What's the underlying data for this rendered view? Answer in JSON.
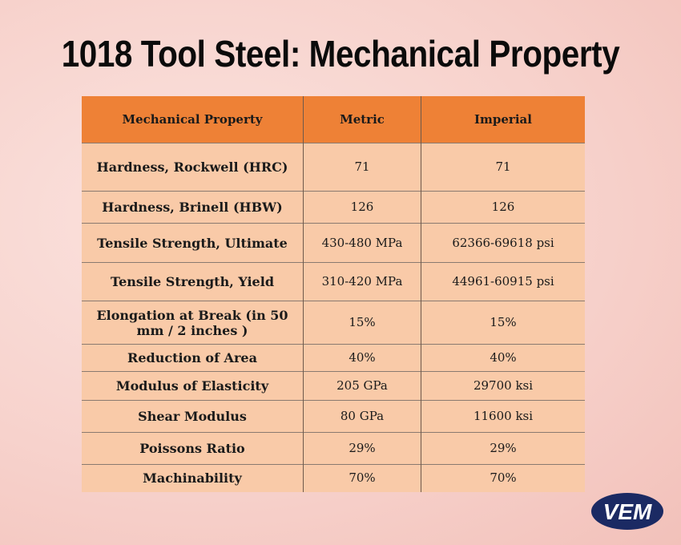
{
  "title": "1018 Tool Steel: Mechanical Property",
  "table": {
    "headers": [
      "Mechanical Property",
      "Metric",
      "Imperial"
    ],
    "rows": [
      [
        "Hardness, Rockwell (HRC)",
        "71",
        "71"
      ],
      [
        "Hardness, Brinell (HBW)",
        "126",
        "126"
      ],
      [
        "Tensile Strength, Ultimate",
        "430-480 MPa",
        "62366-69618 psi"
      ],
      [
        "Tensile Strength, Yield",
        "310-420 MPa",
        "44961-60915 psi"
      ],
      [
        "Elongation at Break (in 50 mm / 2 inches )",
        "15%",
        "15%"
      ],
      [
        "Reduction of Area",
        "40%",
        "40%"
      ],
      [
        "Modulus of Elasticity",
        "205 GPa",
        "29700 ksi"
      ],
      [
        "Shear Modulus",
        "80 GPa",
        "11600 ksi"
      ],
      [
        "Poissons Ratio",
        "29%",
        "29%"
      ],
      [
        "Machinability",
        "70%",
        "70%"
      ]
    ]
  },
  "logo": {
    "text": "VEM",
    "color": "#1b2a63"
  },
  "colors": {
    "header": "#ee8136",
    "cell": "#f9caa8",
    "background": "#f7d2cc"
  }
}
